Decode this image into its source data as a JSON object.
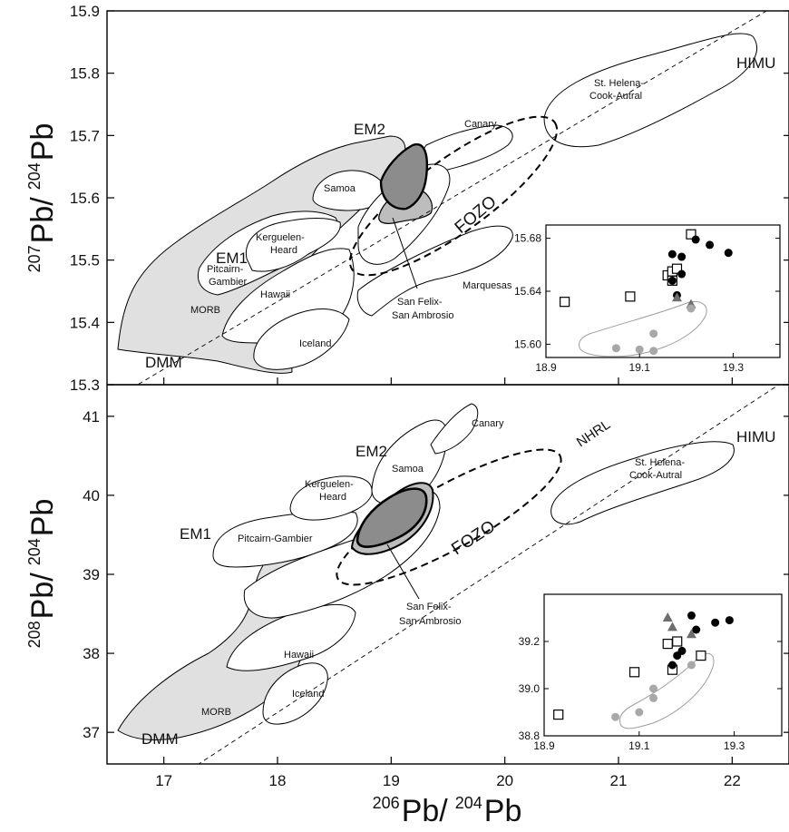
{
  "chart_data": [
    {
      "type": "scatter",
      "panel": "top",
      "ylabel": {
        "sup": "207",
        "main": "Pb/",
        "sup2": "204",
        "main2": "Pb"
      },
      "xlim": [
        16.5,
        22.5
      ],
      "ylim": [
        15.3,
        15.9
      ],
      "xticks": [
        "17",
        "18",
        "19",
        "20",
        "21",
        "22"
      ],
      "yticks": [
        "15.3",
        "15.4",
        "15.5",
        "15.6",
        "15.7",
        "15.8",
        "15.9"
      ],
      "reference_line": "NHRL (dashed)",
      "endmembers": [
        {
          "label": "DMM",
          "x": 16.9,
          "y": 15.33
        },
        {
          "label": "EM1",
          "x": 17.25,
          "y": 15.54
        },
        {
          "label": "EM2",
          "x": 18.85,
          "y": 15.71
        },
        {
          "label": "HIMU",
          "x": 22.15,
          "y": 15.84
        }
      ],
      "fields": [
        {
          "label": "MORB",
          "kind": "shaded"
        },
        {
          "label": "Pitcairn-\nGambier",
          "kind": "outline"
        },
        {
          "label": "Kerguelen-\nHeard",
          "kind": "outline"
        },
        {
          "label": "Samoa",
          "kind": "outline"
        },
        {
          "label": "Canary",
          "kind": "outline"
        },
        {
          "label": "Hawaii",
          "kind": "outline"
        },
        {
          "label": "Iceland",
          "kind": "outline"
        },
        {
          "label": "Marquesas",
          "kind": "outline"
        },
        {
          "label": "St. Helena-\nCook-Autral",
          "kind": "outline"
        },
        {
          "label": "FOZO",
          "kind": "dashed"
        },
        {
          "label": "San Felix-\nSan Ambrosio",
          "kind": "filled-dark"
        }
      ],
      "inset": {
        "xlim": [
          18.9,
          19.4
        ],
        "ylim": [
          15.59,
          15.69
        ],
        "xticks": [
          "18.9",
          "19.1",
          "19.3"
        ],
        "yticks": [
          "15.60",
          "15.64",
          "15.68"
        ],
        "series": [
          {
            "marker": "open-square",
            "points": [
              [
                18.94,
                15.632
              ],
              [
                19.08,
                15.636
              ],
              [
                19.16,
                15.652
              ],
              [
                19.17,
                15.655
              ],
              [
                19.18,
                15.657
              ],
              [
                19.21,
                15.683
              ],
              [
                19.17,
                15.648
              ]
            ]
          },
          {
            "marker": "black-circle",
            "points": [
              [
                19.17,
                15.668
              ],
              [
                19.19,
                15.666
              ],
              [
                19.22,
                15.679
              ],
              [
                19.25,
                15.675
              ],
              [
                19.29,
                15.669
              ],
              [
                19.19,
                15.653
              ],
              [
                19.17,
                15.648
              ],
              [
                19.18,
                15.637
              ]
            ]
          },
          {
            "marker": "gray-triangle",
            "points": [
              [
                19.18,
                15.635
              ],
              [
                19.21,
                15.63
              ]
            ]
          },
          {
            "marker": "gray-circle",
            "points": [
              [
                19.05,
                15.597
              ],
              [
                19.1,
                15.596
              ],
              [
                19.13,
                15.595
              ],
              [
                19.13,
                15.608
              ],
              [
                19.21,
                15.627
              ]
            ]
          }
        ]
      }
    },
    {
      "type": "scatter",
      "panel": "bottom",
      "ylabel": {
        "sup": "208",
        "main": "Pb/",
        "sup2": "204",
        "main2": "Pb"
      },
      "xlabel": {
        "sup": "206",
        "main": "Pb/",
        "sup2": "204",
        "main2": "Pb"
      },
      "xlim": [
        16.5,
        22.5
      ],
      "ylim": [
        36.6,
        41.4
      ],
      "xticks": [
        "17",
        "18",
        "19",
        "20",
        "21",
        "22"
      ],
      "yticks": [
        "37",
        "38",
        "39",
        "40",
        "41"
      ],
      "reference_line": "NHRL",
      "endmembers": [
        {
          "label": "DMM",
          "x": 17.0,
          "y": 36.85
        },
        {
          "label": "EM1",
          "x": 16.75,
          "y": 39.2
        },
        {
          "label": "EM2",
          "x": 18.7,
          "y": 39.85
        },
        {
          "label": "HIMU",
          "x": 22.15,
          "y": 40.85
        }
      ],
      "fields": [
        {
          "label": "MORB",
          "kind": "shaded"
        },
        {
          "label": "Pitcairn-Gambier",
          "kind": "outline"
        },
        {
          "label": "Kerguelen-\nHeard",
          "kind": "outline"
        },
        {
          "label": "Samoa",
          "kind": "outline"
        },
        {
          "label": "Canary",
          "kind": "outline"
        },
        {
          "label": "Hawaii",
          "kind": "outline"
        },
        {
          "label": "Iceland",
          "kind": "outline"
        },
        {
          "label": "St. Helena-\nCook-Autral",
          "kind": "outline"
        },
        {
          "label": "FOZO",
          "kind": "dashed"
        },
        {
          "label": "San Felix-\nSan Ambrosio",
          "kind": "filled-dark"
        }
      ],
      "inset": {
        "xlim": [
          18.9,
          19.4
        ],
        "ylim": [
          38.8,
          39.4
        ],
        "xticks": [
          "18.9",
          "19.1",
          "19.3"
        ],
        "yticks": [
          "38.8",
          "39.0",
          "39.2"
        ],
        "series": [
          {
            "marker": "open-square",
            "points": [
              [
                18.93,
                38.89
              ],
              [
                19.09,
                39.07
              ],
              [
                19.16,
                39.19
              ],
              [
                19.18,
                39.2
              ],
              [
                19.23,
                39.14
              ],
              [
                19.17,
                39.08
              ]
            ]
          },
          {
            "marker": "black-circle",
            "points": [
              [
                19.21,
                39.31
              ],
              [
                19.22,
                39.25
              ],
              [
                19.26,
                39.28
              ],
              [
                19.29,
                39.29
              ],
              [
                19.19,
                39.16
              ],
              [
                19.18,
                39.14
              ],
              [
                19.17,
                39.1
              ]
            ]
          },
          {
            "marker": "gray-triangle",
            "points": [
              [
                19.16,
                39.3
              ],
              [
                19.17,
                39.26
              ],
              [
                19.21,
                39.23
              ]
            ]
          },
          {
            "marker": "gray-circle",
            "points": [
              [
                19.05,
                38.88
              ],
              [
                19.1,
                38.9
              ],
              [
                19.13,
                38.96
              ],
              [
                19.13,
                39.0
              ],
              [
                19.21,
                39.1
              ]
            ]
          }
        ]
      }
    }
  ]
}
